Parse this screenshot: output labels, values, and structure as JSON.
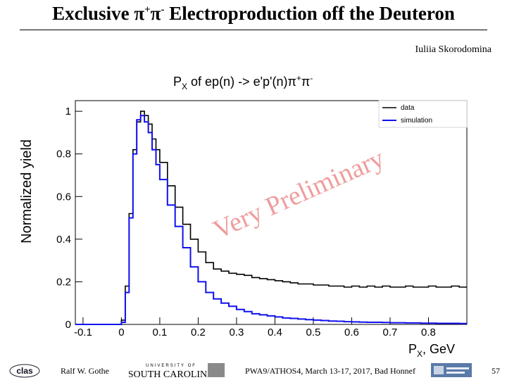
{
  "slide": {
    "title_pre": "Exclusive π",
    "title_sup1": "+",
    "title_mid": "π",
    "title_sup2": "-",
    "title_post": " Electroproduction off the Deuteron",
    "author": "Iuliia Skorodomina",
    "watermark": "Very Preliminary"
  },
  "footer": {
    "presenter": "Ralf  W. Gothe",
    "conference": "PWA9/ATHOS4, March 13-17, 2017, Bad Honnef",
    "page_number": "57",
    "logo_clas_text": "clas",
    "logo_sc_small": "UNIVERSITY OF",
    "logo_sc_big": "SOUTH CAROLINA"
  },
  "colors": {
    "data": "#000000",
    "simulation": "#1010ee",
    "watermark": "#ef9d9d"
  },
  "chart_data": {
    "type": "line",
    "title": "P_X of ep(n) -> e'p'(n)π⁺π⁻",
    "title_main": "P",
    "title_sub": "X",
    "title_rest": " of ep(n) -> e'p'(n)π",
    "title_sup1": "+",
    "title_mid": "π",
    "title_sup2": "-",
    "xlabel_main": "P",
    "xlabel_sub": "X",
    "xlabel_rest": ", GeV",
    "ylabel": "Normalized yield",
    "xlim": [
      -0.12,
      0.9
    ],
    "ylim": [
      0,
      1.05
    ],
    "xticks": [
      -0.1,
      0,
      0.1,
      0.2,
      0.3,
      0.4,
      0.5,
      0.6,
      0.7,
      0.8
    ],
    "xtick_labels": [
      "-0.1",
      "0",
      "0.1",
      "0.2",
      "0.3",
      "0.4",
      "0.5",
      "0.6",
      "0.7",
      "0.8"
    ],
    "yticks": [
      0,
      0.2,
      0.4,
      0.6,
      0.8,
      1
    ],
    "ytick_labels": [
      "0",
      "0.2",
      "0.4",
      "0.6",
      "0.8",
      "1"
    ],
    "legend_position": "top-right",
    "series": [
      {
        "name": "data",
        "color": "#000000",
        "x": [
          -0.12,
          -0.01,
          0.0,
          0.01,
          0.02,
          0.03,
          0.04,
          0.05,
          0.06,
          0.07,
          0.08,
          0.09,
          0.1,
          0.12,
          0.14,
          0.16,
          0.18,
          0.2,
          0.22,
          0.24,
          0.26,
          0.28,
          0.3,
          0.32,
          0.34,
          0.36,
          0.38,
          0.4,
          0.42,
          0.44,
          0.46,
          0.48,
          0.5,
          0.52,
          0.54,
          0.56,
          0.58,
          0.6,
          0.62,
          0.64,
          0.66,
          0.68,
          0.7,
          0.72,
          0.74,
          0.76,
          0.78,
          0.8,
          0.82,
          0.84,
          0.86,
          0.88
        ],
        "y": [
          0,
          0,
          0.02,
          0.18,
          0.52,
          0.82,
          0.95,
          1.0,
          0.98,
          0.94,
          0.87,
          0.82,
          0.76,
          0.65,
          0.55,
          0.47,
          0.4,
          0.34,
          0.29,
          0.26,
          0.25,
          0.24,
          0.235,
          0.23,
          0.22,
          0.215,
          0.21,
          0.205,
          0.2,
          0.195,
          0.19,
          0.19,
          0.185,
          0.185,
          0.18,
          0.18,
          0.175,
          0.18,
          0.175,
          0.18,
          0.175,
          0.18,
          0.175,
          0.175,
          0.18,
          0.175,
          0.175,
          0.18,
          0.175,
          0.175,
          0.18,
          0.175
        ]
      },
      {
        "name": "simulation",
        "color": "#1010ee",
        "x": [
          -0.12,
          -0.01,
          0.0,
          0.01,
          0.02,
          0.03,
          0.04,
          0.05,
          0.06,
          0.07,
          0.08,
          0.09,
          0.1,
          0.12,
          0.14,
          0.16,
          0.18,
          0.2,
          0.22,
          0.24,
          0.26,
          0.28,
          0.3,
          0.32,
          0.34,
          0.36,
          0.38,
          0.4,
          0.42,
          0.44,
          0.46,
          0.48,
          0.5,
          0.52,
          0.54,
          0.56,
          0.58,
          0.6,
          0.62,
          0.64,
          0.66,
          0.68,
          0.7,
          0.72,
          0.74,
          0.76,
          0.78,
          0.8,
          0.82,
          0.84,
          0.86,
          0.88
        ],
        "y": [
          0,
          0,
          0.01,
          0.15,
          0.5,
          0.8,
          0.96,
          0.98,
          0.95,
          0.9,
          0.82,
          0.75,
          0.68,
          0.56,
          0.46,
          0.36,
          0.27,
          0.2,
          0.15,
          0.12,
          0.1,
          0.085,
          0.07,
          0.06,
          0.05,
          0.045,
          0.04,
          0.035,
          0.03,
          0.028,
          0.025,
          0.022,
          0.02,
          0.018,
          0.016,
          0.015,
          0.013,
          0.012,
          0.011,
          0.01,
          0.01,
          0.009,
          0.008,
          0.008,
          0.007,
          0.007,
          0.006,
          0.006,
          0.005,
          0.005,
          0.005,
          0.004
        ]
      }
    ]
  }
}
